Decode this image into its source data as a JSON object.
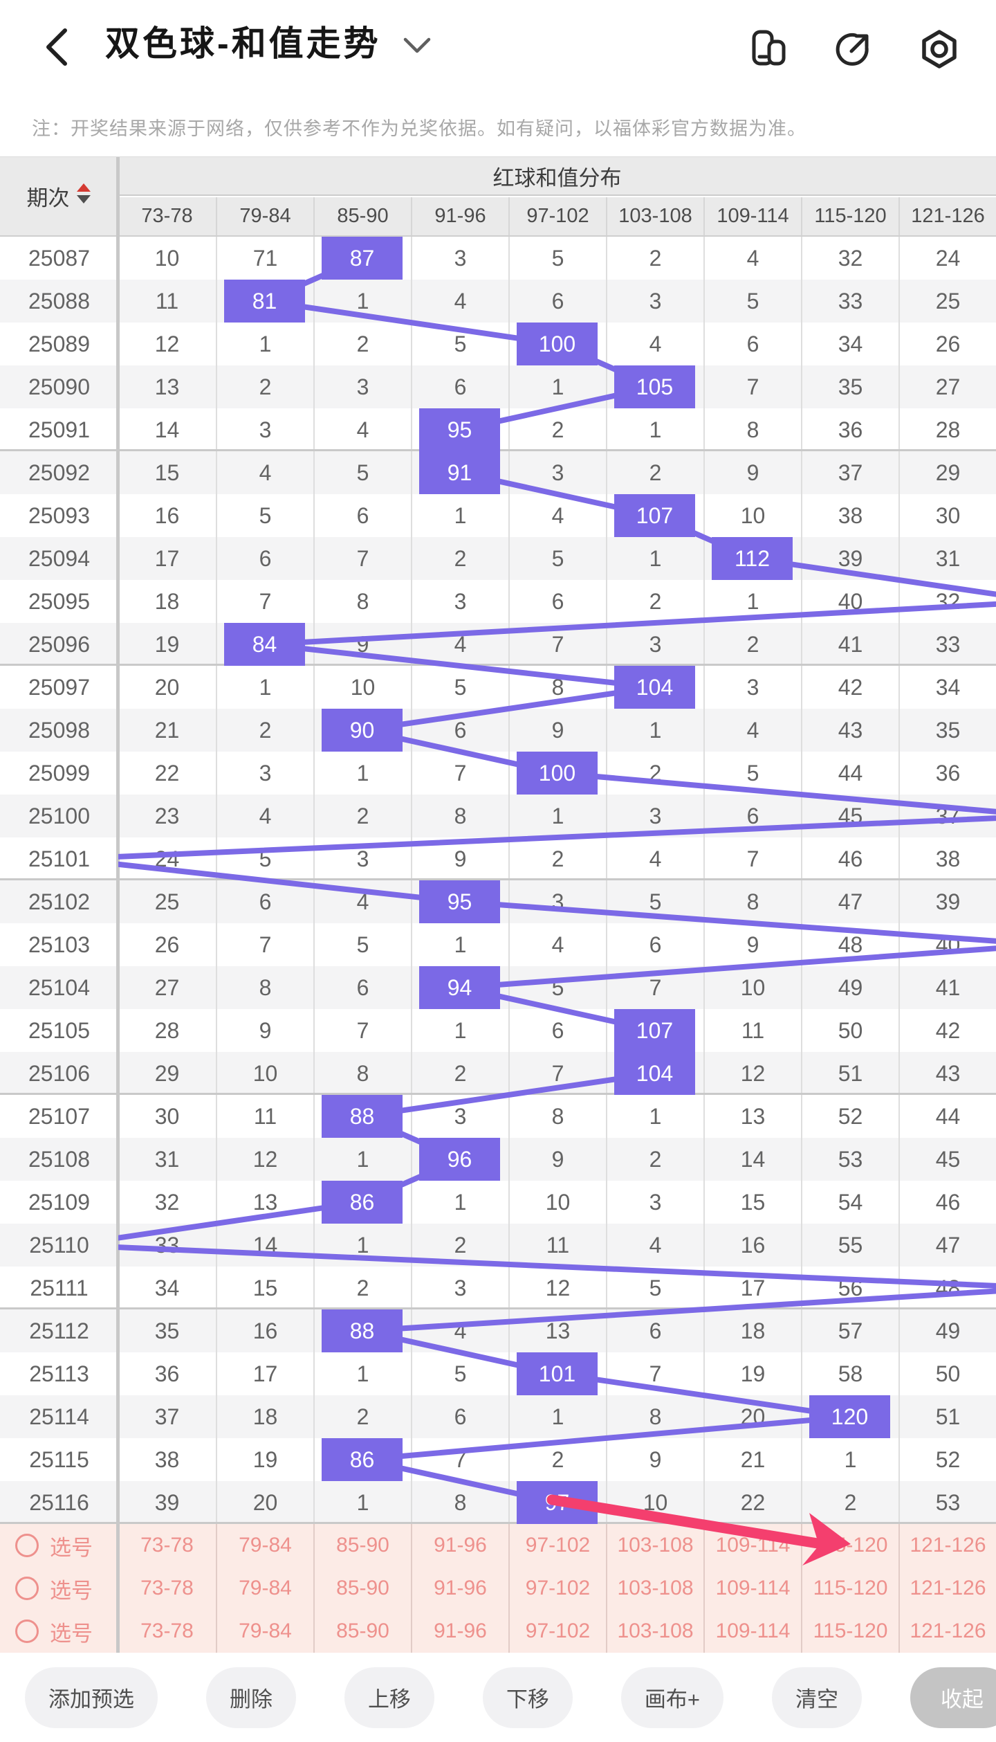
{
  "navbar": {
    "title": "双色球-和值走势"
  },
  "note": "注：开奖结果来源于网络，仅供参考不作为兑奖依据。如有疑问，以福体彩官方数据为准。",
  "table": {
    "period_header": "期次",
    "group_header": "红球和值分布",
    "columns": [
      "73-78",
      "79-84",
      "85-90",
      "91-96",
      "97-102",
      "103-108",
      "109-114",
      "115-120",
      "121-126"
    ],
    "rows": [
      {
        "period": "25087",
        "cells": [
          "10",
          "71",
          "87",
          "3",
          "5",
          "2",
          "4",
          "32",
          "24"
        ],
        "hot": 2
      },
      {
        "period": "25088",
        "cells": [
          "11",
          "81",
          "1",
          "4",
          "6",
          "3",
          "5",
          "33",
          "25"
        ],
        "hot": 1
      },
      {
        "period": "25089",
        "cells": [
          "12",
          "1",
          "2",
          "5",
          "100",
          "4",
          "6",
          "34",
          "26"
        ],
        "hot": 4
      },
      {
        "period": "25090",
        "cells": [
          "13",
          "2",
          "3",
          "6",
          "1",
          "105",
          "7",
          "35",
          "27"
        ],
        "hot": 5
      },
      {
        "period": "25091",
        "cells": [
          "14",
          "3",
          "4",
          "95",
          "2",
          "1",
          "8",
          "36",
          "28"
        ],
        "hot": 3
      },
      {
        "period": "25092",
        "cells": [
          "15",
          "4",
          "5",
          "91",
          "3",
          "2",
          "9",
          "37",
          "29"
        ],
        "hot": 3
      },
      {
        "period": "25093",
        "cells": [
          "16",
          "5",
          "6",
          "1",
          "4",
          "107",
          "10",
          "38",
          "30"
        ],
        "hot": 5
      },
      {
        "period": "25094",
        "cells": [
          "17",
          "6",
          "7",
          "2",
          "5",
          "1",
          "112",
          "39",
          "31"
        ],
        "hot": 6
      },
      {
        "period": "25095",
        "cells": [
          "18",
          "7",
          "8",
          "3",
          "6",
          "2",
          "1",
          "40",
          "32"
        ],
        "hot": "right"
      },
      {
        "period": "25096",
        "cells": [
          "19",
          "84",
          "9",
          "4",
          "7",
          "3",
          "2",
          "41",
          "33"
        ],
        "hot": 1
      },
      {
        "period": "25097",
        "cells": [
          "20",
          "1",
          "10",
          "5",
          "8",
          "104",
          "3",
          "42",
          "34"
        ],
        "hot": 5
      },
      {
        "period": "25098",
        "cells": [
          "21",
          "2",
          "90",
          "6",
          "9",
          "1",
          "4",
          "43",
          "35"
        ],
        "hot": 2
      },
      {
        "period": "25099",
        "cells": [
          "22",
          "3",
          "1",
          "7",
          "100",
          "2",
          "5",
          "44",
          "36"
        ],
        "hot": 4
      },
      {
        "period": "25100",
        "cells": [
          "23",
          "4",
          "2",
          "8",
          "1",
          "3",
          "6",
          "45",
          "37"
        ],
        "hot": "right"
      },
      {
        "period": "25101",
        "cells": [
          "24",
          "5",
          "3",
          "9",
          "2",
          "4",
          "7",
          "46",
          "38"
        ],
        "hot": "left"
      },
      {
        "period": "25102",
        "cells": [
          "25",
          "6",
          "4",
          "95",
          "3",
          "5",
          "8",
          "47",
          "39"
        ],
        "hot": 3
      },
      {
        "period": "25103",
        "cells": [
          "26",
          "7",
          "5",
          "1",
          "4",
          "6",
          "9",
          "48",
          "40"
        ],
        "hot": "right"
      },
      {
        "period": "25104",
        "cells": [
          "27",
          "8",
          "6",
          "94",
          "5",
          "7",
          "10",
          "49",
          "41"
        ],
        "hot": 3
      },
      {
        "period": "25105",
        "cells": [
          "28",
          "9",
          "7",
          "1",
          "6",
          "107",
          "11",
          "50",
          "42"
        ],
        "hot": 5
      },
      {
        "period": "25106",
        "cells": [
          "29",
          "10",
          "8",
          "2",
          "7",
          "104",
          "12",
          "51",
          "43"
        ],
        "hot": 5
      },
      {
        "period": "25107",
        "cells": [
          "30",
          "11",
          "88",
          "3",
          "8",
          "1",
          "13",
          "52",
          "44"
        ],
        "hot": 2
      },
      {
        "period": "25108",
        "cells": [
          "31",
          "12",
          "1",
          "96",
          "9",
          "2",
          "14",
          "53",
          "45"
        ],
        "hot": 3
      },
      {
        "period": "25109",
        "cells": [
          "32",
          "13",
          "86",
          "1",
          "10",
          "3",
          "15",
          "54",
          "46"
        ],
        "hot": 2
      },
      {
        "period": "25110",
        "cells": [
          "33",
          "14",
          "1",
          "2",
          "11",
          "4",
          "16",
          "55",
          "47"
        ],
        "hot": "left"
      },
      {
        "period": "25111",
        "cells": [
          "34",
          "15",
          "2",
          "3",
          "12",
          "5",
          "17",
          "56",
          "48"
        ],
        "hot": "right"
      },
      {
        "period": "25112",
        "cells": [
          "35",
          "16",
          "88",
          "4",
          "13",
          "6",
          "18",
          "57",
          "49"
        ],
        "hot": 2
      },
      {
        "period": "25113",
        "cells": [
          "36",
          "17",
          "1",
          "5",
          "101",
          "7",
          "19",
          "58",
          "50"
        ],
        "hot": 4
      },
      {
        "period": "25114",
        "cells": [
          "37",
          "18",
          "2",
          "6",
          "1",
          "8",
          "20",
          "120",
          "51"
        ],
        "hot": 7
      },
      {
        "period": "25115",
        "cells": [
          "38",
          "19",
          "86",
          "7",
          "2",
          "9",
          "21",
          "1",
          "52"
        ],
        "hot": 2
      },
      {
        "period": "25116",
        "cells": [
          "39",
          "20",
          "1",
          "8",
          "97",
          "10",
          "22",
          "2",
          "53"
        ],
        "hot": 4
      }
    ]
  },
  "selection": {
    "label": "选号",
    "row_count": 3,
    "ranges": [
      "73-78",
      "79-84",
      "85-90",
      "91-96",
      "97-102",
      "103-108",
      "109-114",
      "115-120",
      "121-126"
    ]
  },
  "toolbar": {
    "buttons": [
      "添加预选",
      "删除",
      "上移",
      "下移",
      "画布+",
      "清空",
      "收起"
    ],
    "button_names": [
      "add-preset",
      "delete",
      "move-up",
      "move-down",
      "canvas",
      "clear",
      "collapse"
    ],
    "active_button": "收起"
  },
  "colors": {
    "accent": "#7b69e6",
    "trend_line": "#7b69e6",
    "arrow": "#f43f6e",
    "selection_text": "#ee918d",
    "selection_bg": "#fcebe6",
    "header_bg": "#eaeaea",
    "stripe": "#f4f4f5",
    "sort_up": "#d43a32",
    "sort_down": "#4f4f4f"
  }
}
